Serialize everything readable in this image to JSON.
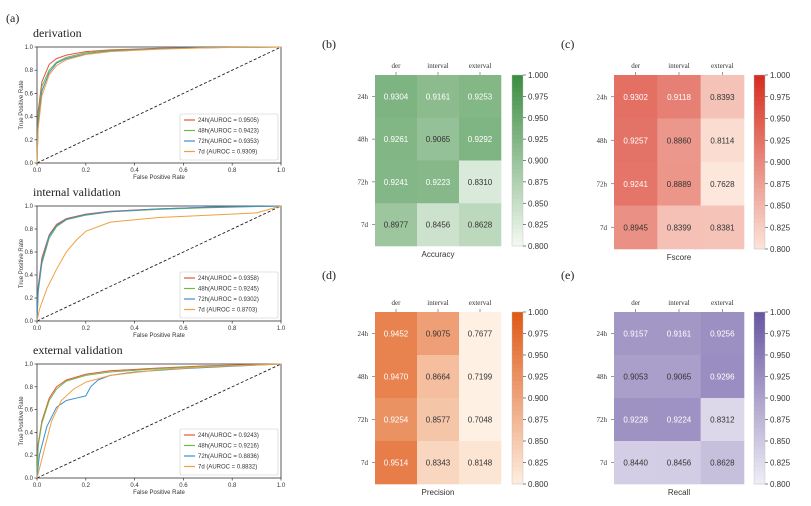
{
  "panel_letters": [
    "(a)",
    "(b)",
    "(c)",
    "(d)",
    "(e)"
  ],
  "colors": {
    "roc_24h": "#e8553a",
    "roc_48h": "#74b84a",
    "roc_72h": "#3a8fd1",
    "roc_7d": "#f0a040",
    "diagonal": "#222222",
    "accuracy_low": "#f7fbf5",
    "accuracy_high": "#3e8e44",
    "fscore_low": "#fde6dc",
    "fscore_high": "#d62f22",
    "precision_low": "#fef0e2",
    "precision_high": "#e05a18",
    "recall_low": "#f1f0f7",
    "recall_high": "#6a57a3"
  },
  "chart_data": [
    {
      "type": "line",
      "title": "derivation",
      "xlabel": "False Positive Rate",
      "ylabel": "True Positive Rate",
      "xlim": [
        0,
        1
      ],
      "ylim": [
        0,
        1
      ],
      "xticks": [
        "0.0",
        "0.2",
        "0.4",
        "0.6",
        "0.8",
        "1.0"
      ],
      "yticks": [
        "0.0",
        "0.2",
        "0.4",
        "0.6",
        "0.8",
        "1.0"
      ],
      "legend_position": "lower-right",
      "series": [
        {
          "name": "24h(AUROC = 0.9505)",
          "color_key": "roc_24h",
          "x": [
            0,
            0.005,
            0.02,
            0.05,
            0.08,
            0.12,
            0.2,
            0.3,
            0.5,
            0.7,
            1.0
          ],
          "y": [
            0,
            0.45,
            0.7,
            0.85,
            0.9,
            0.93,
            0.96,
            0.975,
            0.99,
            0.995,
            1.0
          ]
        },
        {
          "name": "48h(AUROC = 0.9423)",
          "color_key": "roc_48h",
          "x": [
            0,
            0.005,
            0.02,
            0.05,
            0.08,
            0.12,
            0.2,
            0.3,
            0.5,
            0.7,
            1.0
          ],
          "y": [
            0,
            0.4,
            0.66,
            0.8,
            0.87,
            0.91,
            0.95,
            0.97,
            0.985,
            0.995,
            1.0
          ]
        },
        {
          "name": "72h(AUROC = 0.9353)",
          "color_key": "roc_72h",
          "x": [
            0,
            0.005,
            0.02,
            0.05,
            0.08,
            0.12,
            0.2,
            0.3,
            0.5,
            0.7,
            1.0
          ],
          "y": [
            0,
            0.35,
            0.62,
            0.78,
            0.86,
            0.9,
            0.94,
            0.965,
            0.985,
            0.995,
            1.0
          ]
        },
        {
          "name": "7d  (AUROC = 0.9309)",
          "color_key": "roc_7d",
          "x": [
            0,
            0.005,
            0.02,
            0.05,
            0.08,
            0.12,
            0.2,
            0.3,
            0.5,
            0.7,
            1.0
          ],
          "y": [
            0,
            0.3,
            0.58,
            0.76,
            0.84,
            0.89,
            0.935,
            0.96,
            0.98,
            0.993,
            1.0
          ]
        }
      ]
    },
    {
      "type": "line",
      "title": "internal validation",
      "xlabel": "False Positive Rate",
      "ylabel": "True Positive Rate",
      "xlim": [
        0,
        1
      ],
      "ylim": [
        0,
        1
      ],
      "xticks": [
        "0.0",
        "0.2",
        "0.4",
        "0.6",
        "0.8",
        "1.0"
      ],
      "yticks": [
        "0.0",
        "0.2",
        "0.4",
        "0.6",
        "0.8",
        "1.0"
      ],
      "legend_position": "lower-right",
      "series": [
        {
          "name": "24h(AUROC = 0.9358)",
          "color_key": "roc_24h",
          "x": [
            0,
            0.005,
            0.02,
            0.05,
            0.08,
            0.12,
            0.2,
            0.3,
            0.5,
            0.7,
            1.0
          ],
          "y": [
            0,
            0.3,
            0.55,
            0.75,
            0.84,
            0.89,
            0.93,
            0.955,
            0.975,
            0.99,
            1.0
          ]
        },
        {
          "name": "48h(AUROC = 0.9245)",
          "color_key": "roc_48h",
          "x": [
            0,
            0.005,
            0.02,
            0.05,
            0.08,
            0.12,
            0.2,
            0.3,
            0.5,
            0.7,
            1.0
          ],
          "y": [
            0,
            0.25,
            0.5,
            0.72,
            0.82,
            0.88,
            0.92,
            0.95,
            0.97,
            0.985,
            1.0
          ]
        },
        {
          "name": "72h(AUROC = 0.9302)",
          "color_key": "roc_72h",
          "x": [
            0,
            0.005,
            0.02,
            0.05,
            0.08,
            0.12,
            0.2,
            0.3,
            0.5,
            0.7,
            1.0
          ],
          "y": [
            0,
            0.28,
            0.52,
            0.74,
            0.83,
            0.885,
            0.925,
            0.95,
            0.975,
            0.99,
            1.0
          ]
        },
        {
          "name": "7d  (AUROC = 0.8703)",
          "color_key": "roc_7d",
          "x": [
            0,
            0.01,
            0.04,
            0.08,
            0.12,
            0.16,
            0.2,
            0.3,
            0.5,
            0.7,
            0.9,
            1.0
          ],
          "y": [
            0,
            0.1,
            0.28,
            0.45,
            0.6,
            0.7,
            0.78,
            0.86,
            0.9,
            0.92,
            0.94,
            1.0
          ]
        }
      ]
    },
    {
      "type": "line",
      "title": "external validation",
      "xlabel": "False Positive Rate",
      "ylabel": "True Positive Rate",
      "xlim": [
        0,
        1
      ],
      "ylim": [
        0,
        1
      ],
      "xticks": [
        "0.0",
        "0.2",
        "0.4",
        "0.6",
        "0.8",
        "1.0"
      ],
      "yticks": [
        "0.0",
        "0.2",
        "0.4",
        "0.6",
        "0.8",
        "1.0"
      ],
      "legend_position": "lower-right",
      "series": [
        {
          "name": "24h(AUROC = 0.9243)",
          "color_key": "roc_24h",
          "x": [
            0,
            0.005,
            0.02,
            0.05,
            0.08,
            0.12,
            0.2,
            0.3,
            0.5,
            0.7,
            1.0
          ],
          "y": [
            0,
            0.3,
            0.5,
            0.7,
            0.8,
            0.86,
            0.91,
            0.94,
            0.965,
            0.985,
            1.0
          ]
        },
        {
          "name": "48h(AUROC = 0.9216)",
          "color_key": "roc_48h",
          "x": [
            0,
            0.005,
            0.02,
            0.05,
            0.08,
            0.12,
            0.2,
            0.3,
            0.5,
            0.7,
            1.0
          ],
          "y": [
            0,
            0.28,
            0.48,
            0.68,
            0.78,
            0.85,
            0.9,
            0.93,
            0.96,
            0.98,
            1.0
          ]
        },
        {
          "name": "72h(AUROC = 0.8836)",
          "color_key": "roc_72h",
          "x": [
            0,
            0.01,
            0.04,
            0.08,
            0.12,
            0.16,
            0.2,
            0.22,
            0.25,
            0.3,
            0.4,
            0.6,
            0.8,
            1.0
          ],
          "y": [
            0,
            0.2,
            0.45,
            0.62,
            0.68,
            0.7,
            0.72,
            0.8,
            0.86,
            0.9,
            0.93,
            0.96,
            0.98,
            1.0
          ]
        },
        {
          "name": "7d  (AUROC = 0.8832)",
          "color_key": "roc_7d",
          "x": [
            0,
            0.01,
            0.03,
            0.06,
            0.1,
            0.15,
            0.2,
            0.3,
            0.5,
            0.7,
            1.0
          ],
          "y": [
            0,
            0.08,
            0.25,
            0.5,
            0.68,
            0.78,
            0.84,
            0.9,
            0.95,
            0.975,
            1.0
          ]
        }
      ]
    },
    {
      "type": "heatmap",
      "title": "Accuracy",
      "xlabel": "Accuracy",
      "columns": [
        "der",
        "interval",
        "exterval"
      ],
      "rows": [
        "24h",
        "48h",
        "72h",
        "7d"
      ],
      "values": [
        [
          0.9304,
          0.9161,
          0.9253
        ],
        [
          0.9261,
          0.9065,
          0.9292
        ],
        [
          0.9241,
          0.9223,
          0.831
        ],
        [
          0.8977,
          0.8456,
          0.8628
        ]
      ],
      "colorbar_range": [
        0.8,
        1.0
      ],
      "colorbar_ticks": [
        "1.000",
        "0.975",
        "0.950",
        "0.925",
        "0.900",
        "0.875",
        "0.850",
        "0.825",
        "0.800"
      ],
      "palette": "accuracy"
    },
    {
      "type": "heatmap",
      "title": "Fscore",
      "xlabel": "Fscore",
      "columns": [
        "der",
        "interval",
        "exterval"
      ],
      "rows": [
        "24h",
        "48h",
        "72h",
        "7d"
      ],
      "values": [
        [
          0.9302,
          0.9118,
          0.8393
        ],
        [
          0.9257,
          0.886,
          0.8114
        ],
        [
          0.9241,
          0.8889,
          0.7628
        ],
        [
          0.8945,
          0.8399,
          0.8381
        ]
      ],
      "colorbar_range": [
        0.8,
        1.0
      ],
      "colorbar_ticks": [
        "1.000",
        "0.975",
        "0.950",
        "0.925",
        "0.900",
        "0.875",
        "0.850",
        "0.825",
        "0.800"
      ],
      "palette": "fscore"
    },
    {
      "type": "heatmap",
      "title": "Precision",
      "xlabel": "Precision",
      "columns": [
        "der",
        "interval",
        "exterval"
      ],
      "rows": [
        "24h",
        "48h",
        "72h",
        "7d"
      ],
      "values": [
        [
          0.9452,
          0.9075,
          0.7677
        ],
        [
          0.947,
          0.8664,
          0.7199
        ],
        [
          0.9254,
          0.8577,
          0.7048
        ],
        [
          0.9514,
          0.8343,
          0.8148
        ]
      ],
      "colorbar_range": [
        0.8,
        1.0
      ],
      "colorbar_ticks": [
        "1.000",
        "0.975",
        "0.950",
        "0.925",
        "0.900",
        "0.875",
        "0.850",
        "0.825",
        "0.800"
      ],
      "palette": "precision"
    },
    {
      "type": "heatmap",
      "title": "Recall",
      "xlabel": "Recall",
      "columns": [
        "der",
        "interval",
        "exterval"
      ],
      "rows": [
        "24h",
        "48h",
        "72h",
        "7d"
      ],
      "values": [
        [
          0.9157,
          0.9161,
          0.9256
        ],
        [
          0.9053,
          0.9065,
          0.9296
        ],
        [
          0.9228,
          0.9224,
          0.8312
        ],
        [
          0.844,
          0.8456,
          0.8628
        ]
      ],
      "colorbar_range": [
        0.8,
        1.0
      ],
      "colorbar_ticks": [
        "1.000",
        "0.975",
        "0.950",
        "0.925",
        "0.900",
        "0.875",
        "0.850",
        "0.825",
        "0.800"
      ],
      "palette": "recall"
    }
  ]
}
